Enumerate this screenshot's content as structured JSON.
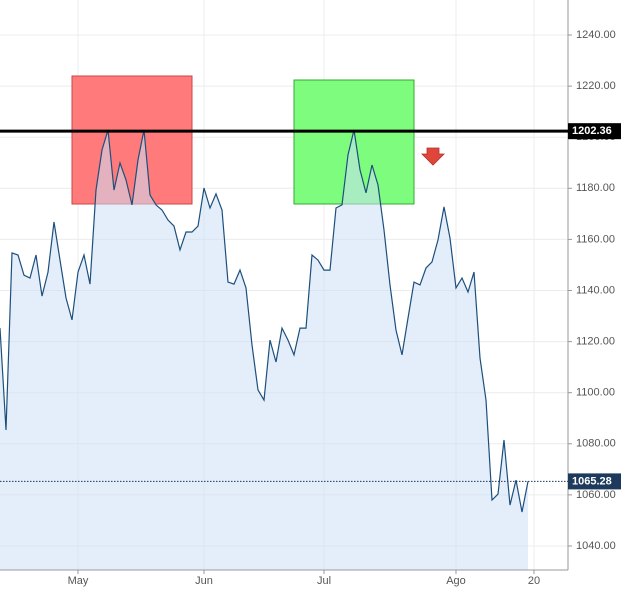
{
  "chart_data": {
    "type": "area",
    "values": [
      1125.3,
      1085.4,
      1154.7,
      1153.9,
      1146,
      1144.9,
      1153.9,
      1137.8,
      1147.2,
      1166.8,
      1151.9,
      1137.1,
      1128.5,
      1147.2,
      1153.9,
      1142.5,
      1179.3,
      1195,
      1202.8,
      1179.3,
      1189.9,
      1183.3,
      1173.5,
      1191.1,
      1202.8,
      1177.4,
      1173.5,
      1171.5,
      1167.6,
      1165.2,
      1155.9,
      1162.9,
      1162.9,
      1165.2,
      1180.1,
      1172.3,
      1177.8,
      1171.5,
      1143.3,
      1142.5,
      1148,
      1141,
      1118.7,
      1101.1,
      1097.1,
      1120.6,
      1112,
      1125.3,
      1120.6,
      1114.8,
      1125.3,
      1125.3,
      1153.9,
      1151.9,
      1148,
      1148,
      1172.3,
      1173.5,
      1193.1,
      1202.8,
      1187.2,
      1178.2,
      1189.1,
      1181.3,
      1163.7,
      1142.2,
      1124.5,
      1114.8,
      1129.2,
      1143.3,
      1142.2,
      1148.8,
      1151.2,
      1159.8,
      1172.7,
      1160.5,
      1141,
      1144.9,
      1139.4,
      1147.2,
      1113.6,
      1097.1,
      1058,
      1060.3,
      1081.5,
      1056,
      1065.8,
      1053.3,
      1065.28
    ],
    "color": "#1d4f7c",
    "ylim": [
      1030.6,
      1253.7
    ],
    "yticks": [
      {
        "value": 1040,
        "label": "1040.00"
      },
      {
        "value": 1060,
        "label": "1060.00"
      },
      {
        "value": 1080,
        "label": "1080.00"
      },
      {
        "value": 1100,
        "label": "1100.00"
      },
      {
        "value": 1120,
        "label": "1120.00"
      },
      {
        "value": 1140,
        "label": "1140.00"
      },
      {
        "value": 1160,
        "label": "1160.00"
      },
      {
        "value": 1180,
        "label": "1180.00"
      },
      {
        "value": 1200,
        "label": "1200.00"
      },
      {
        "value": 1220,
        "label": "1220.00"
      },
      {
        "value": 1240,
        "label": "1240.00"
      }
    ],
    "xlim": [
      0,
      94.67
    ],
    "xticks": [
      {
        "value": 13,
        "label": "May"
      },
      {
        "value": 34,
        "label": "Jun"
      },
      {
        "value": 54,
        "label": "Jul"
      },
      {
        "value": 76,
        "label": "Ago"
      },
      {
        "value": 89,
        "label": "20"
      }
    ],
    "grid": true,
    "hline": 1202.36,
    "last_price": 1065.28
  }
}
